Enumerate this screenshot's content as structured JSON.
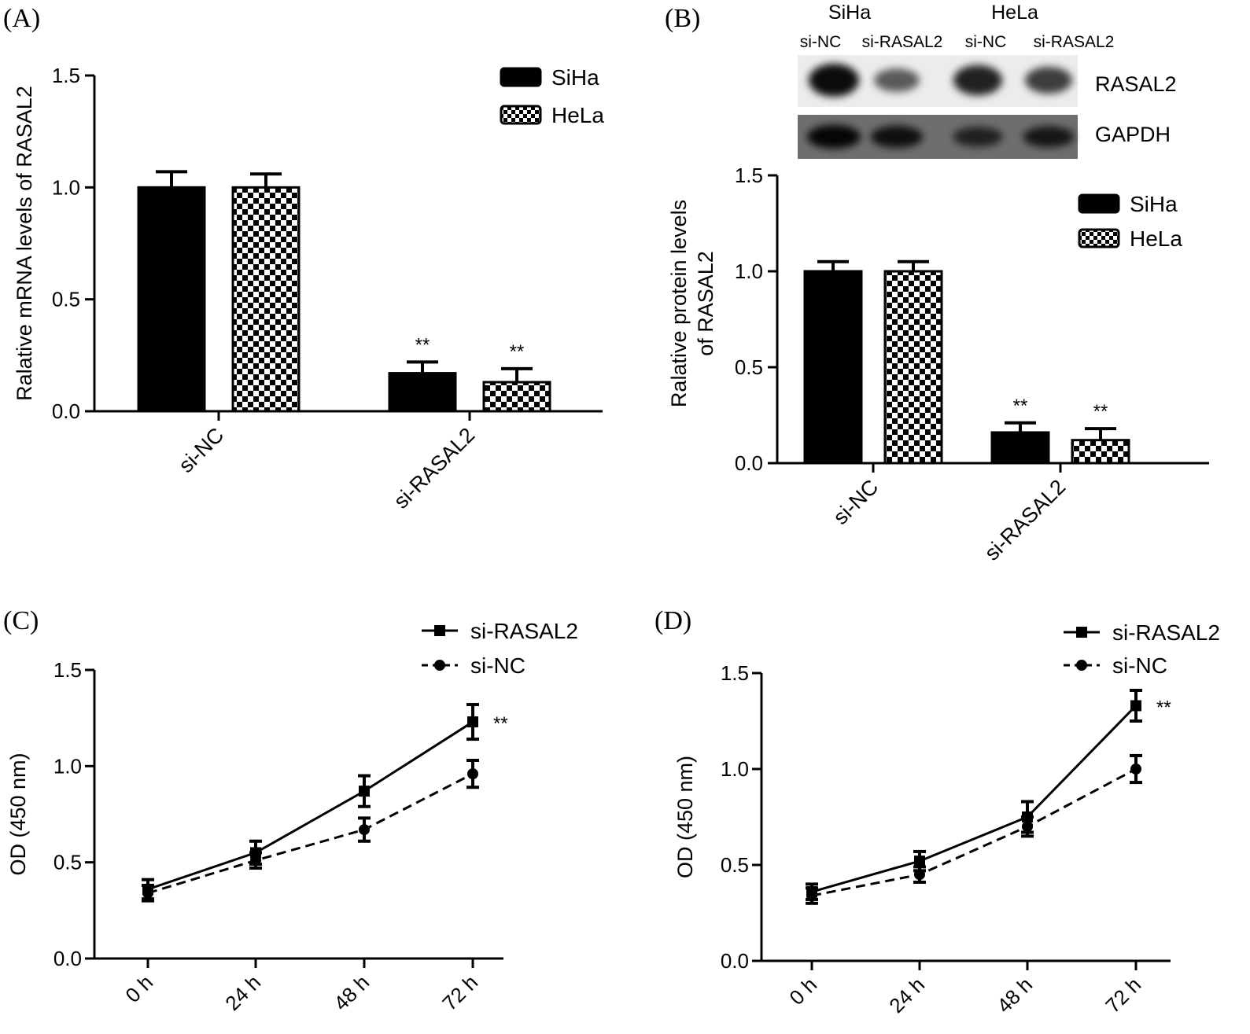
{
  "panels": {
    "A": {
      "label": "(A)"
    },
    "B": {
      "label": "(B)"
    },
    "C": {
      "label": "(C)"
    },
    "D": {
      "label": "(D)"
    }
  },
  "blot": {
    "cell_lines": [
      "SiHa",
      "HeLa"
    ],
    "lanes": [
      "si-NC",
      "si-RASAL2",
      "si-NC",
      "si-RASAL2"
    ],
    "rows": [
      "RASAL2",
      "GAPDH"
    ],
    "band_intensity_RASAL2": [
      1.0,
      0.45,
      0.85,
      0.65
    ],
    "band_intensity_GAPDH": [
      1.0,
      0.85,
      0.6,
      0.75
    ]
  },
  "colors": {
    "siha": "#000000",
    "hela_check_a": "#000000",
    "hela_check_b": "#ffffff",
    "axis": "#000000"
  },
  "chart_data": [
    {
      "id": "A",
      "type": "bar",
      "categories": [
        "si-NC",
        "si-RASAL2"
      ],
      "series": [
        {
          "name": "SiHa",
          "values": [
            1.0,
            0.17
          ],
          "errors": [
            0.07,
            0.05
          ]
        },
        {
          "name": "HeLa",
          "values": [
            1.0,
            0.13
          ],
          "errors": [
            0.06,
            0.06
          ]
        }
      ],
      "annotations": [
        [
          "",
          ""
        ],
        [
          "**",
          "**"
        ]
      ],
      "ylabel": "Ralative mRNA levels of RASAL2",
      "ylim": [
        0,
        1.5
      ],
      "yticks": [
        "0.0",
        "0.5",
        "1.0",
        "1.5"
      ],
      "legend": "top-right"
    },
    {
      "id": "B",
      "type": "bar",
      "categories": [
        "si-NC",
        "si-RASAL2"
      ],
      "series": [
        {
          "name": "SiHa",
          "values": [
            1.0,
            0.16
          ],
          "errors": [
            0.05,
            0.05
          ]
        },
        {
          "name": "HeLa",
          "values": [
            1.0,
            0.12
          ],
          "errors": [
            0.05,
            0.06
          ]
        }
      ],
      "annotations": [
        [
          "",
          ""
        ],
        [
          "**",
          "**"
        ]
      ],
      "ylabel_lines": [
        "Ralative protein levels",
        "of RASAL2"
      ],
      "ylim": [
        0,
        1.5
      ],
      "yticks": [
        "0.0",
        "0.5",
        "1.0",
        "1.5"
      ],
      "legend": "top-right"
    },
    {
      "id": "C",
      "type": "line",
      "x": [
        "0 h",
        "24 h",
        "48 h",
        "72 h"
      ],
      "series": [
        {
          "name": "si-RASAL2",
          "values": [
            0.36,
            0.55,
            0.87,
            1.23
          ],
          "errors": [
            0.05,
            0.06,
            0.08,
            0.09
          ],
          "marker": "square",
          "dash": "solid"
        },
        {
          "name": "si-NC",
          "values": [
            0.34,
            0.51,
            0.67,
            0.96
          ],
          "errors": [
            0.04,
            0.04,
            0.06,
            0.07
          ],
          "marker": "circle",
          "dash": "dashed"
        }
      ],
      "significance": "**",
      "ylabel": "OD (450 nm)",
      "ylim": [
        0,
        1.5
      ],
      "yticks": [
        "0.0",
        "0.5",
        "1.0",
        "1.5"
      ],
      "legend": "top-right"
    },
    {
      "id": "D",
      "type": "line",
      "x": [
        "0 h",
        "24 h",
        "48 h",
        "72 h"
      ],
      "series": [
        {
          "name": "si-RASAL2",
          "values": [
            0.36,
            0.52,
            0.75,
            1.33
          ],
          "errors": [
            0.04,
            0.05,
            0.08,
            0.08
          ],
          "marker": "square",
          "dash": "solid"
        },
        {
          "name": "si-NC",
          "values": [
            0.34,
            0.45,
            0.7,
            1.0
          ],
          "errors": [
            0.04,
            0.04,
            0.05,
            0.07
          ],
          "marker": "circle",
          "dash": "dashed"
        }
      ],
      "significance": "**",
      "ylabel": "OD (450 nm)",
      "ylim": [
        0,
        1.5
      ],
      "yticks": [
        "0.0",
        "0.5",
        "1.0",
        "1.5"
      ],
      "legend": "top-right"
    }
  ]
}
